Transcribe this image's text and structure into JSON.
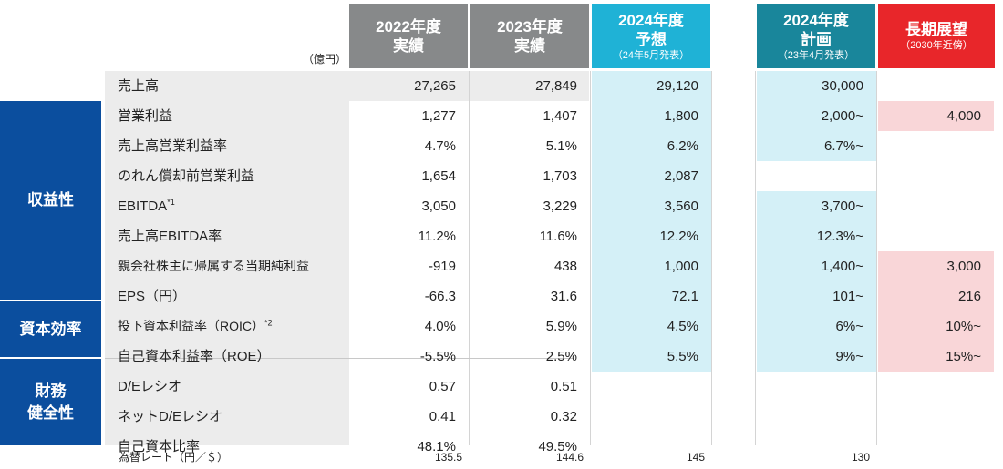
{
  "header": {
    "unit": "（億円）",
    "columns": [
      {
        "line1": "2022年度",
        "line2": "実績",
        "sub": ""
      },
      {
        "line1": "2023年度",
        "line2": "実績",
        "sub": ""
      },
      {
        "line1": "2024年度",
        "line2": "予想",
        "sub": "（24年5月発表）"
      },
      {
        "line1": "2024年度",
        "line2": "計画",
        "sub": "（23年4月発表）"
      },
      {
        "line1": "長期展望",
        "line2": "",
        "sub": "（2030年近傍）"
      }
    ]
  },
  "categories": {
    "profitability": "収益性",
    "capital_efficiency": "資本効率",
    "financial_line1": "財務",
    "financial_line2": "健全性"
  },
  "rows": [
    {
      "label": "売上高",
      "note": "",
      "v2022": "27,265",
      "v2023": "27,849",
      "f2024": "29,120",
      "p2024": "30,000",
      "long": ""
    },
    {
      "label": "営業利益",
      "note": "",
      "v2022": "1,277",
      "v2023": "1,407",
      "f2024": "1,800",
      "p2024": "2,000~",
      "long": "4,000"
    },
    {
      "label": "売上高営業利益率",
      "note": "",
      "v2022": "4.7%",
      "v2023": "5.1%",
      "f2024": "6.2%",
      "p2024": "6.7%~",
      "long": ""
    },
    {
      "label": "のれん償却前営業利益",
      "note": "",
      "v2022": "1,654",
      "v2023": "1,703",
      "f2024": "2,087",
      "p2024": "",
      "long": ""
    },
    {
      "label": "EBITDA",
      "note": "*1",
      "v2022": "3,050",
      "v2023": "3,229",
      "f2024": "3,560",
      "p2024": "3,700~",
      "long": ""
    },
    {
      "label": "売上高EBITDA率",
      "note": "",
      "v2022": "11.2%",
      "v2023": "11.6%",
      "f2024": "12.2%",
      "p2024": "12.3%~",
      "long": ""
    },
    {
      "label": "親会社株主に帰属する当期純利益",
      "note": "",
      "v2022": "-919",
      "v2023": "438",
      "f2024": "1,000",
      "p2024": "1,400~",
      "long": "3,000"
    },
    {
      "label": "EPS（円）",
      "note": "",
      "v2022": "-66.3",
      "v2023": "31.6",
      "f2024": "72.1",
      "p2024": "101~",
      "long": "216"
    },
    {
      "label": "投下資本利益率（ROIC）",
      "note": "*2",
      "v2022": "4.0%",
      "v2023": "5.9%",
      "f2024": "4.5%",
      "p2024": "6%~",
      "long": "10%~"
    },
    {
      "label": "自己資本利益率（ROE）",
      "note": "",
      "v2022": "-5.5%",
      "v2023": "2.5%",
      "f2024": "5.5%",
      "p2024": "9%~",
      "long": "15%~"
    },
    {
      "label": "D/Eレシオ",
      "note": "",
      "v2022": "0.57",
      "v2023": "0.51",
      "f2024": "",
      "p2024": "",
      "long": ""
    },
    {
      "label": "ネットD/Eレシオ",
      "note": "",
      "v2022": "0.41",
      "v2023": "0.32",
      "f2024": "",
      "p2024": "",
      "long": ""
    },
    {
      "label": "自己資本比率",
      "note": "",
      "v2022": "48.1%",
      "v2023": "49.5%",
      "f2024": "",
      "p2024": "",
      "long": ""
    }
  ],
  "fx": {
    "label": "為替レート（円／＄）",
    "v2022": "135.5",
    "v2023": "144.6",
    "f2024": "145",
    "p2024": "130"
  },
  "colors": {
    "actual_header": "#87898a",
    "forecast_header": "#1fb2d6",
    "plan_header": "#19869b",
    "longterm_header": "#e8262a",
    "category": "#0b4e9e",
    "forecast_cell": "#d4f0f7",
    "longterm_cell": "#f9d6d8"
  }
}
